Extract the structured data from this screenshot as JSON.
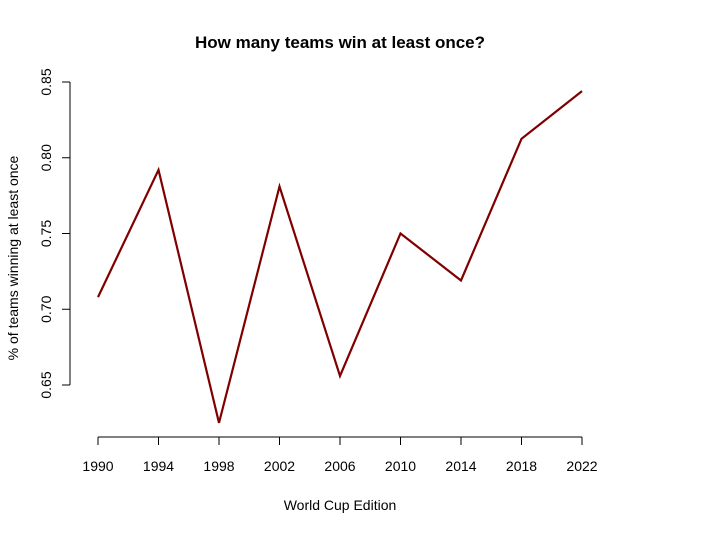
{
  "chart_data": {
    "type": "line",
    "title": "How many teams win at least once?",
    "xlabel": "World Cup Edition",
    "ylabel": "% of teams winning at least once",
    "x": [
      1990,
      1994,
      1998,
      2002,
      2006,
      2010,
      2014,
      2018,
      2022
    ],
    "series": [
      {
        "values": [
          0.708,
          0.792,
          0.625,
          0.781,
          0.656,
          0.75,
          0.719,
          0.8125,
          0.844
        ]
      }
    ],
    "x_ticks": [
      "1990",
      "1994",
      "1998",
      "2002",
      "2006",
      "2010",
      "2014",
      "2018",
      "2022"
    ],
    "y_ticks": [
      "0.65",
      "0.70",
      "0.75",
      "0.80",
      "0.85"
    ],
    "xlim": [
      1990,
      2022
    ],
    "ylim": [
      0.625,
      0.85
    ],
    "grid": false,
    "line_color": "#800000"
  }
}
